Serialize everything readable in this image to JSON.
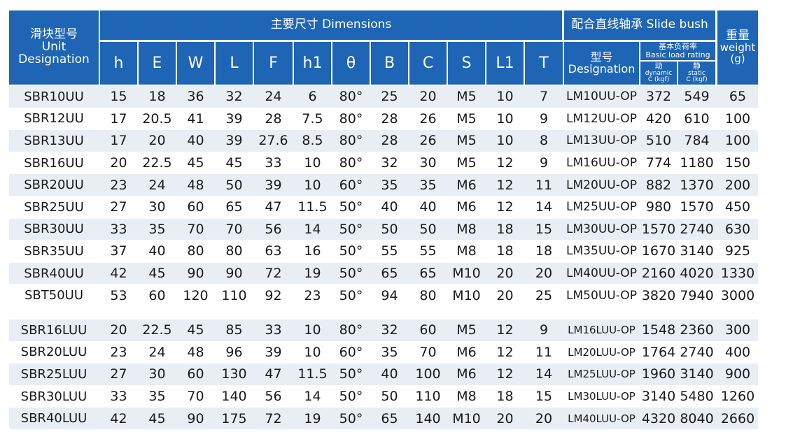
{
  "colors": {
    "header_bg": "#1f65b6",
    "row_bg": "#e9eef4",
    "text": "#1a1a1a"
  },
  "header": {
    "designation_zh": "滑块型号",
    "designation_en": "Unit Designation",
    "dimensions_group": "主要尺寸 Dimensions",
    "bush_group": "配合直线轴承 Slide bush",
    "weight_zh": "重量",
    "weight_en": "weight",
    "weight_unit": "(g)",
    "bush_model_zh": "型号",
    "bush_model_en": "Designation",
    "load_zh": "基本负荷率",
    "load_en": "Basic load rating",
    "dynamic_zh": "动",
    "dynamic_en": "dynamic",
    "dynamic_unit": "C (kgf)",
    "static_zh": "静",
    "static_en": "static",
    "static_unit": "C (kgf)",
    "dims": [
      "h",
      "E",
      "W",
      "L",
      "F",
      "h1",
      "θ",
      "B",
      "C",
      "S",
      "L1",
      "T"
    ]
  },
  "rows_a": [
    [
      "SBR10UU",
      "15",
      "18",
      "36",
      "32",
      "24",
      "6",
      "80°",
      "25",
      "20",
      "M5",
      "10",
      "7",
      "LM10UU-OP",
      "372",
      "549",
      "65"
    ],
    [
      "SBR12UU",
      "17",
      "20.5",
      "41",
      "39",
      "28",
      "7.5",
      "80°",
      "28",
      "26",
      "M5",
      "10",
      "9",
      "LM12UU-OP",
      "420",
      "610",
      "100"
    ],
    [
      "SBR13UU",
      "17",
      "20",
      "40",
      "39",
      "27.6",
      "8.5",
      "80°",
      "28",
      "26",
      "M5",
      "10",
      "8",
      "LM13UU-OP",
      "510",
      "784",
      "100"
    ],
    [
      "SBR16UU",
      "20",
      "22.5",
      "45",
      "45",
      "33",
      "10",
      "80°",
      "32",
      "30",
      "M5",
      "12",
      "9",
      "LM16UU-OP",
      "774",
      "1180",
      "150"
    ],
    [
      "SBR20UU",
      "23",
      "24",
      "48",
      "50",
      "39",
      "10",
      "60°",
      "35",
      "35",
      "M6",
      "12",
      "11",
      "LM20UU-OP",
      "882",
      "1370",
      "200"
    ],
    [
      "SBR25UU",
      "27",
      "30",
      "60",
      "65",
      "47",
      "11.5",
      "50°",
      "40",
      "40",
      "M6",
      "12",
      "14",
      "LM25UU-OP",
      "980",
      "1570",
      "450"
    ],
    [
      "SBR30UU",
      "33",
      "35",
      "70",
      "70",
      "56",
      "14",
      "50°",
      "50",
      "50",
      "M8",
      "18",
      "15",
      "LM30UU-OP",
      "1570",
      "2740",
      "630"
    ],
    [
      "SBR35UU",
      "37",
      "40",
      "80",
      "80",
      "63",
      "16",
      "50°",
      "55",
      "55",
      "M8",
      "18",
      "18",
      "LM35UU-OP",
      "1670",
      "3140",
      "925"
    ],
    [
      "SBR40UU",
      "42",
      "45",
      "90",
      "90",
      "72",
      "19",
      "50°",
      "65",
      "65",
      "M10",
      "20",
      "20",
      "LM40UU-OP",
      "2160",
      "4020",
      "1330"
    ],
    [
      "SBT50UU",
      "53",
      "60",
      "120",
      "110",
      "92",
      "23",
      "50°",
      "94",
      "80",
      "M10",
      "20",
      "25",
      "LM50UU-OP",
      "3820",
      "7940",
      "3000"
    ]
  ],
  "rows_b": [
    [
      "SBR16LUU",
      "20",
      "22.5",
      "45",
      "85",
      "33",
      "10",
      "80°",
      "32",
      "60",
      "M5",
      "12",
      "9",
      "LM16LUU-OP",
      "1548",
      "2360",
      "300"
    ],
    [
      "SBR20LUU",
      "23",
      "24",
      "48",
      "96",
      "39",
      "10",
      "60°",
      "35",
      "70",
      "M6",
      "12",
      "11",
      "LM20LUU-OP",
      "1764",
      "2740",
      "400"
    ],
    [
      "SBR25LUU",
      "27",
      "30",
      "60",
      "130",
      "47",
      "11.5",
      "50°",
      "40",
      "100",
      "M6",
      "12",
      "14",
      "LM25LUU-OP",
      "1960",
      "3140",
      "900"
    ],
    [
      "SBR30LUU",
      "33",
      "35",
      "70",
      "140",
      "56",
      "14",
      "50°",
      "50",
      "110",
      "M8",
      "18",
      "15",
      "LM30LUU-OP",
      "3140",
      "5480",
      "1260"
    ],
    [
      "SBR40LUU",
      "42",
      "45",
      "90",
      "175",
      "72",
      "19",
      "50°",
      "65",
      "140",
      "M10",
      "20",
      "20",
      "LM40LUU-OP",
      "4320",
      "8040",
      "2660"
    ]
  ]
}
